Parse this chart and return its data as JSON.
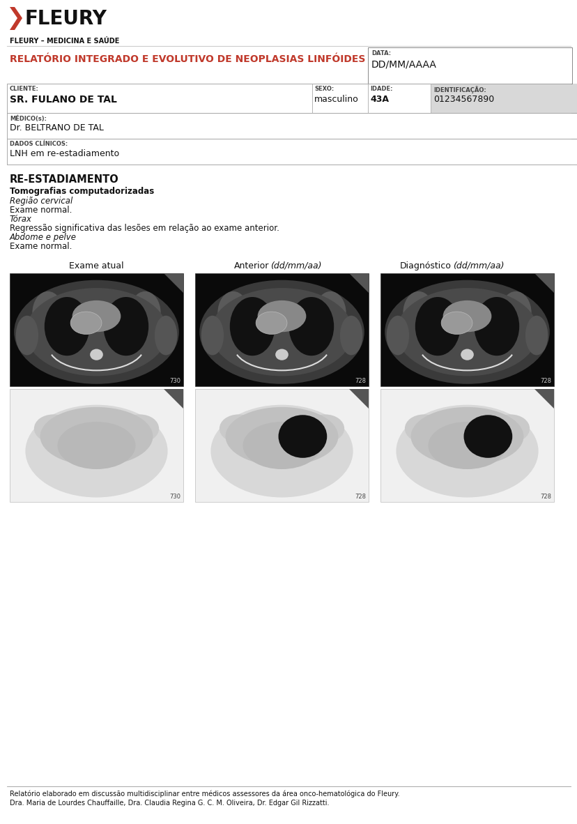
{
  "bg_color": "#ffffff",
  "red_color": "#c0392b",
  "logo_text": "FLEURY",
  "subtitle_text": "FLEURY – MEDICINA E SAÚDE",
  "report_title": "RELATÓRIO INTEGRADO E EVOLUTIVO DE NEOPLASIAS LINFÓIDES",
  "date_label": "DATA:",
  "date_value": "DD/MM/AAAA",
  "cliente_label": "CLIENTE:",
  "cliente_value": "SR. FULANO DE TAL",
  "sexo_label": "SEXO:",
  "sexo_value": "masculino",
  "idade_label": "IDADE:",
  "idade_value": "43A",
  "identificacao_label": "IDENTIFICAÇÃO:",
  "identificacao_value": "01234567890",
  "medico_label": "MÉDICO(s):",
  "medico_value": "Dr. BELTRANO DE TAL",
  "dados_label": "DADOS CLÍNICOS:",
  "dados_value": "LNH em re-estadiamento",
  "section_title": "RE-ESTADIAMENTO",
  "tomo_title": "Tomografias computadorizadas",
  "cervical_label": "Região cervical",
  "cervical_result": "Exame normal.",
  "torax_label": "Tórax",
  "torax_result": "Regressão significativa das lesões em relação ao exame anterior.",
  "abdome_label": "Abdome e pelve",
  "abdome_result": "Exame normal.",
  "col1_label": "Exame atual",
  "col2_label_main": "Anterior",
  "col2_label_italic": "(dd/mm/aa)",
  "col3_label_main": "Diagnóstico",
  "col3_label_italic": "(dd/mm/aa)",
  "footer_text1": "Relatório elaborado em discussão multidisciplinar entre médicos assessores da área onco-hematológica do Fleury.",
  "footer_text2": "Dra. Maria de Lourdes Chauffaille, Dra. Claudia Regina G. C. M. Oliveira, Dr. Edgar Gil Rizzatti.",
  "num_730": "730",
  "num_728_1": "728",
  "num_728_2": "728",
  "gray_bg": "#d8d8d8",
  "line_color": "#aaaaaa",
  "border_color": "#888888"
}
